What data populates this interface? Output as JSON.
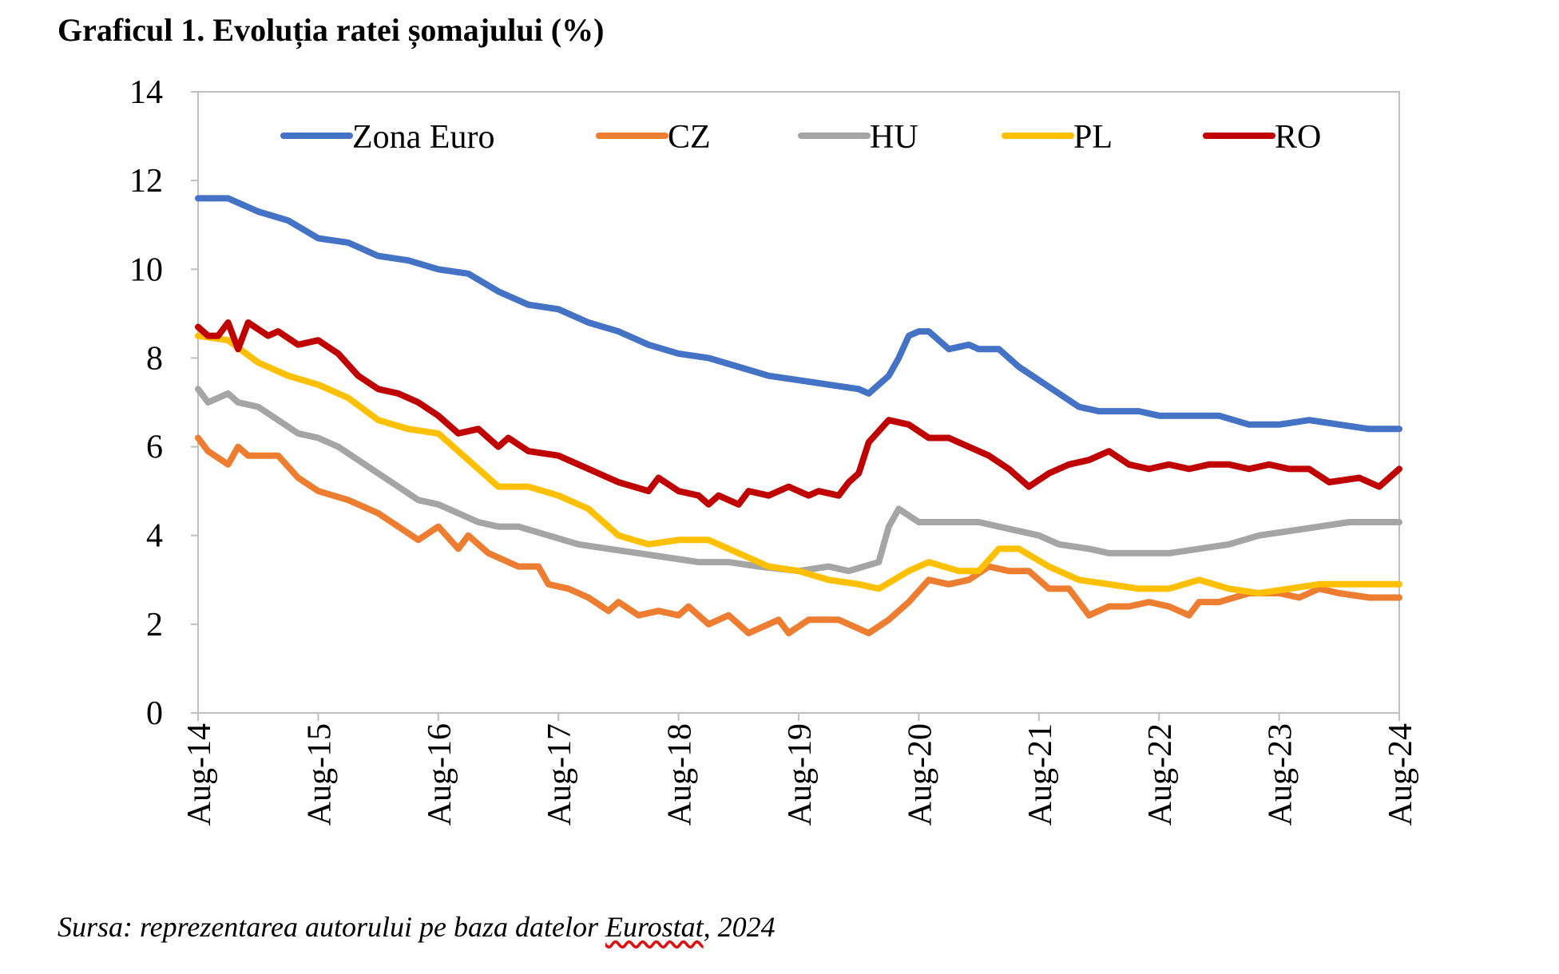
{
  "chart_data": {
    "type": "line",
    "title": "Graficul 1. Evoluția ratei șomajului (%)",
    "ylim": [
      0,
      14
    ],
    "y_ticks": [
      "0",
      "2",
      "4",
      "6",
      "8",
      "10",
      "12",
      "14"
    ],
    "x_ticks": [
      "Aug-14",
      "Aug-15",
      "Aug-16",
      "Aug-17",
      "Aug-18",
      "Aug-19",
      "Aug-20",
      "Aug-21",
      "Aug-22",
      "Aug-23",
      "Aug-24"
    ],
    "x_range": [
      "2014-08",
      "2024-08"
    ],
    "grid": false,
    "legend_position": "top, inside plot",
    "series": [
      {
        "name": "Zona Euro",
        "color": "#4472C4",
        "points": [
          [
            "2014-08",
            11.6
          ],
          [
            "2014-11",
            11.6
          ],
          [
            "2015-02",
            11.3
          ],
          [
            "2015-05",
            11.1
          ],
          [
            "2015-08",
            10.7
          ],
          [
            "2015-11",
            10.6
          ],
          [
            "2016-02",
            10.3
          ],
          [
            "2016-05",
            10.2
          ],
          [
            "2016-08",
            10.0
          ],
          [
            "2016-11",
            9.9
          ],
          [
            "2017-02",
            9.5
          ],
          [
            "2017-05",
            9.2
          ],
          [
            "2017-08",
            9.1
          ],
          [
            "2017-11",
            8.8
          ],
          [
            "2018-02",
            8.6
          ],
          [
            "2018-05",
            8.3
          ],
          [
            "2018-08",
            8.1
          ],
          [
            "2018-11",
            8.0
          ],
          [
            "2019-02",
            7.8
          ],
          [
            "2019-05",
            7.6
          ],
          [
            "2019-08",
            7.5
          ],
          [
            "2019-11",
            7.4
          ],
          [
            "2020-02",
            7.3
          ],
          [
            "2020-03",
            7.2
          ],
          [
            "2020-05",
            7.6
          ],
          [
            "2020-06",
            8.0
          ],
          [
            "2020-07",
            8.5
          ],
          [
            "2020-08",
            8.6
          ],
          [
            "2020-09",
            8.6
          ],
          [
            "2020-11",
            8.2
          ],
          [
            "2021-01",
            8.3
          ],
          [
            "2021-02",
            8.2
          ],
          [
            "2021-04",
            8.2
          ],
          [
            "2021-06",
            7.8
          ],
          [
            "2021-08",
            7.5
          ],
          [
            "2021-10",
            7.2
          ],
          [
            "2021-12",
            6.9
          ],
          [
            "2022-02",
            6.8
          ],
          [
            "2022-06",
            6.8
          ],
          [
            "2022-08",
            6.7
          ],
          [
            "2023-02",
            6.7
          ],
          [
            "2023-05",
            6.5
          ],
          [
            "2023-08",
            6.5
          ],
          [
            "2023-11",
            6.6
          ],
          [
            "2024-02",
            6.5
          ],
          [
            "2024-05",
            6.4
          ],
          [
            "2024-08",
            6.4
          ]
        ]
      },
      {
        "name": "CZ",
        "color": "#ED7D31",
        "points": [
          [
            "2014-08",
            6.2
          ],
          [
            "2014-09",
            5.9
          ],
          [
            "2014-11",
            5.6
          ],
          [
            "2014-12",
            6.0
          ],
          [
            "2015-01",
            5.8
          ],
          [
            "2015-04",
            5.8
          ],
          [
            "2015-06",
            5.3
          ],
          [
            "2015-08",
            5.0
          ],
          [
            "2015-11",
            4.8
          ],
          [
            "2016-02",
            4.5
          ],
          [
            "2016-04",
            4.2
          ],
          [
            "2016-06",
            3.9
          ],
          [
            "2016-08",
            4.2
          ],
          [
            "2016-10",
            3.7
          ],
          [
            "2016-11",
            4.0
          ],
          [
            "2017-01",
            3.6
          ],
          [
            "2017-04",
            3.3
          ],
          [
            "2017-06",
            3.3
          ],
          [
            "2017-07",
            2.9
          ],
          [
            "2017-09",
            2.8
          ],
          [
            "2017-11",
            2.6
          ],
          [
            "2018-01",
            2.3
          ],
          [
            "2018-02",
            2.5
          ],
          [
            "2018-04",
            2.2
          ],
          [
            "2018-06",
            2.3
          ],
          [
            "2018-08",
            2.2
          ],
          [
            "2018-09",
            2.4
          ],
          [
            "2018-11",
            2.0
          ],
          [
            "2019-01",
            2.2
          ],
          [
            "2019-03",
            1.8
          ],
          [
            "2019-05",
            2.0
          ],
          [
            "2019-06",
            2.1
          ],
          [
            "2019-07",
            1.8
          ],
          [
            "2019-09",
            2.1
          ],
          [
            "2019-12",
            2.1
          ],
          [
            "2020-01",
            2.0
          ],
          [
            "2020-03",
            1.8
          ],
          [
            "2020-05",
            2.1
          ],
          [
            "2020-07",
            2.5
          ],
          [
            "2020-09",
            3.0
          ],
          [
            "2020-11",
            2.9
          ],
          [
            "2021-01",
            3.0
          ],
          [
            "2021-03",
            3.3
          ],
          [
            "2021-05",
            3.2
          ],
          [
            "2021-07",
            3.2
          ],
          [
            "2021-09",
            2.8
          ],
          [
            "2021-11",
            2.8
          ],
          [
            "2022-01",
            2.2
          ],
          [
            "2022-03",
            2.4
          ],
          [
            "2022-05",
            2.4
          ],
          [
            "2022-07",
            2.5
          ],
          [
            "2022-09",
            2.4
          ],
          [
            "2022-11",
            2.2
          ],
          [
            "2022-12",
            2.5
          ],
          [
            "2023-02",
            2.5
          ],
          [
            "2023-05",
            2.7
          ],
          [
            "2023-08",
            2.7
          ],
          [
            "2023-10",
            2.6
          ],
          [
            "2023-12",
            2.8
          ],
          [
            "2024-02",
            2.7
          ],
          [
            "2024-05",
            2.6
          ],
          [
            "2024-08",
            2.6
          ]
        ]
      },
      {
        "name": "HU",
        "color": "#A5A5A5",
        "points": [
          [
            "2014-08",
            7.3
          ],
          [
            "2014-09",
            7.0
          ],
          [
            "2014-11",
            7.2
          ],
          [
            "2014-12",
            7.0
          ],
          [
            "2015-02",
            6.9
          ],
          [
            "2015-04",
            6.6
          ],
          [
            "2015-06",
            6.3
          ],
          [
            "2015-08",
            6.2
          ],
          [
            "2015-10",
            6.0
          ],
          [
            "2015-12",
            5.7
          ],
          [
            "2016-02",
            5.4
          ],
          [
            "2016-04",
            5.1
          ],
          [
            "2016-06",
            4.8
          ],
          [
            "2016-08",
            4.7
          ],
          [
            "2016-10",
            4.5
          ],
          [
            "2016-12",
            4.3
          ],
          [
            "2017-02",
            4.2
          ],
          [
            "2017-04",
            4.2
          ],
          [
            "2017-07",
            4.0
          ],
          [
            "2017-10",
            3.8
          ],
          [
            "2018-01",
            3.7
          ],
          [
            "2018-04",
            3.6
          ],
          [
            "2018-07",
            3.5
          ],
          [
            "2018-10",
            3.4
          ],
          [
            "2019-01",
            3.4
          ],
          [
            "2019-04",
            3.3
          ],
          [
            "2019-08",
            3.2
          ],
          [
            "2019-11",
            3.3
          ],
          [
            "2020-01",
            3.2
          ],
          [
            "2020-04",
            3.4
          ],
          [
            "2020-05",
            4.2
          ],
          [
            "2020-06",
            4.6
          ],
          [
            "2020-08",
            4.3
          ],
          [
            "2020-10",
            4.3
          ],
          [
            "2021-02",
            4.3
          ],
          [
            "2021-04",
            4.2
          ],
          [
            "2021-06",
            4.1
          ],
          [
            "2021-08",
            4.0
          ],
          [
            "2021-10",
            3.8
          ],
          [
            "2022-01",
            3.7
          ],
          [
            "2022-03",
            3.6
          ],
          [
            "2022-06",
            3.6
          ],
          [
            "2022-09",
            3.6
          ],
          [
            "2022-12",
            3.7
          ],
          [
            "2023-03",
            3.8
          ],
          [
            "2023-06",
            4.0
          ],
          [
            "2023-09",
            4.1
          ],
          [
            "2023-12",
            4.2
          ],
          [
            "2024-03",
            4.3
          ],
          [
            "2024-08",
            4.3
          ]
        ]
      },
      {
        "name": "PL",
        "color": "#FFC000",
        "points": [
          [
            "2014-08",
            8.5
          ],
          [
            "2014-11",
            8.4
          ],
          [
            "2015-02",
            7.9
          ],
          [
            "2015-05",
            7.6
          ],
          [
            "2015-08",
            7.4
          ],
          [
            "2015-11",
            7.1
          ],
          [
            "2016-02",
            6.6
          ],
          [
            "2016-05",
            6.4
          ],
          [
            "2016-08",
            6.3
          ],
          [
            "2016-11",
            5.7
          ],
          [
            "2017-02",
            5.1
          ],
          [
            "2017-05",
            5.1
          ],
          [
            "2017-08",
            4.9
          ],
          [
            "2017-11",
            4.6
          ],
          [
            "2018-02",
            4.0
          ],
          [
            "2018-05",
            3.8
          ],
          [
            "2018-08",
            3.9
          ],
          [
            "2018-11",
            3.9
          ],
          [
            "2019-02",
            3.6
          ],
          [
            "2019-05",
            3.3
          ],
          [
            "2019-08",
            3.2
          ],
          [
            "2019-11",
            3.0
          ],
          [
            "2020-02",
            2.9
          ],
          [
            "2020-04",
            2.8
          ],
          [
            "2020-07",
            3.2
          ],
          [
            "2020-09",
            3.4
          ],
          [
            "2020-12",
            3.2
          ],
          [
            "2021-02",
            3.2
          ],
          [
            "2021-04",
            3.7
          ],
          [
            "2021-06",
            3.7
          ],
          [
            "2021-09",
            3.3
          ],
          [
            "2021-12",
            3.0
          ],
          [
            "2022-03",
            2.9
          ],
          [
            "2022-06",
            2.8
          ],
          [
            "2022-09",
            2.8
          ],
          [
            "2022-12",
            3.0
          ],
          [
            "2023-03",
            2.8
          ],
          [
            "2023-06",
            2.7
          ],
          [
            "2023-09",
            2.8
          ],
          [
            "2023-12",
            2.9
          ],
          [
            "2024-03",
            2.9
          ],
          [
            "2024-08",
            2.9
          ]
        ]
      },
      {
        "name": "RO",
        "color": "#C00000",
        "points": [
          [
            "2014-08",
            8.7
          ],
          [
            "2014-09",
            8.5
          ],
          [
            "2014-10",
            8.5
          ],
          [
            "2014-11",
            8.8
          ],
          [
            "2014-12",
            8.2
          ],
          [
            "2015-01",
            8.8
          ],
          [
            "2015-03",
            8.5
          ],
          [
            "2015-04",
            8.6
          ],
          [
            "2015-06",
            8.3
          ],
          [
            "2015-08",
            8.4
          ],
          [
            "2015-10",
            8.1
          ],
          [
            "2015-12",
            7.6
          ],
          [
            "2016-02",
            7.3
          ],
          [
            "2016-04",
            7.2
          ],
          [
            "2016-06",
            7.0
          ],
          [
            "2016-08",
            6.7
          ],
          [
            "2016-09",
            6.5
          ],
          [
            "2016-10",
            6.3
          ],
          [
            "2016-12",
            6.4
          ],
          [
            "2017-02",
            6.0
          ],
          [
            "2017-03",
            6.2
          ],
          [
            "2017-05",
            5.9
          ],
          [
            "2017-08",
            5.8
          ],
          [
            "2017-10",
            5.6
          ],
          [
            "2017-12",
            5.4
          ],
          [
            "2018-02",
            5.2
          ],
          [
            "2018-05",
            5.0
          ],
          [
            "2018-06",
            5.3
          ],
          [
            "2018-08",
            5.0
          ],
          [
            "2018-10",
            4.9
          ],
          [
            "2018-11",
            4.7
          ],
          [
            "2018-12",
            4.9
          ],
          [
            "2019-02",
            4.7
          ],
          [
            "2019-03",
            5.0
          ],
          [
            "2019-05",
            4.9
          ],
          [
            "2019-07",
            5.1
          ],
          [
            "2019-09",
            4.9
          ],
          [
            "2019-10",
            5.0
          ],
          [
            "2019-12",
            4.9
          ],
          [
            "2020-01",
            5.2
          ],
          [
            "2020-02",
            5.4
          ],
          [
            "2020-03",
            6.1
          ],
          [
            "2020-05",
            6.6
          ],
          [
            "2020-07",
            6.5
          ],
          [
            "2020-09",
            6.2
          ],
          [
            "2020-11",
            6.2
          ],
          [
            "2021-01",
            6.0
          ],
          [
            "2021-03",
            5.8
          ],
          [
            "2021-05",
            5.5
          ],
          [
            "2021-07",
            5.1
          ],
          [
            "2021-09",
            5.4
          ],
          [
            "2021-11",
            5.6
          ],
          [
            "2022-01",
            5.7
          ],
          [
            "2022-03",
            5.9
          ],
          [
            "2022-05",
            5.6
          ],
          [
            "2022-07",
            5.5
          ],
          [
            "2022-09",
            5.6
          ],
          [
            "2022-11",
            5.5
          ],
          [
            "2023-01",
            5.6
          ],
          [
            "2023-03",
            5.6
          ],
          [
            "2023-05",
            5.5
          ],
          [
            "2023-07",
            5.6
          ],
          [
            "2023-09",
            5.5
          ],
          [
            "2023-11",
            5.5
          ],
          [
            "2024-01",
            5.2
          ],
          [
            "2024-04",
            5.3
          ],
          [
            "2024-06",
            5.1
          ],
          [
            "2024-08",
            5.5
          ]
        ]
      }
    ]
  },
  "source": {
    "prefix": "Sursa: reprezentarea autorului pe baza datelor ",
    "source_name": "Eurostat",
    "suffix": ", 2024"
  }
}
